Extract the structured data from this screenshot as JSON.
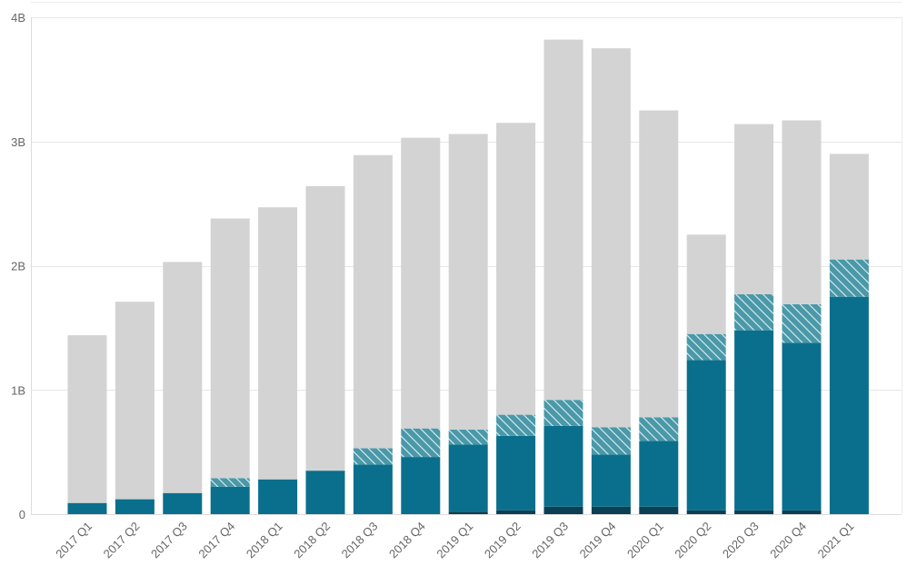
{
  "chart_data": {
    "type": "bar",
    "stacked": true,
    "title": "",
    "xlabel": "",
    "ylabel": "",
    "ylim": [
      0,
      4000000000
    ],
    "grid": true,
    "legend": "none",
    "ytick_values": [
      0,
      1000000000,
      2000000000,
      3000000000,
      4000000000
    ],
    "ytick_labels": [
      "0",
      "1B",
      "2B",
      "3B",
      "4B"
    ],
    "categories": [
      "2017 Q1",
      "2017 Q2",
      "2017 Q3",
      "2017 Q4",
      "2018 Q1",
      "2018 Q2",
      "2018 Q3",
      "2018 Q4",
      "2019 Q1",
      "2019 Q2",
      "2019 Q3",
      "2019 Q4",
      "2020 Q1",
      "2020 Q2",
      "2020 Q3",
      "2020 Q4",
      "2021 Q1"
    ],
    "series": [
      {
        "color": "#0b3f54",
        "style": "solid",
        "values": [
          0,
          0,
          0,
          0,
          0,
          0,
          0,
          0,
          20000000,
          30000000,
          60000000,
          60000000,
          60000000,
          30000000,
          30000000,
          30000000,
          0
        ]
      },
      {
        "color": "#0a6f8c",
        "style": "solid",
        "values": [
          90000000,
          120000000,
          170000000,
          220000000,
          280000000,
          350000000,
          400000000,
          460000000,
          540000000,
          600000000,
          650000000,
          420000000,
          530000000,
          1210000000,
          1450000000,
          1350000000,
          1750000000
        ]
      },
      {
        "color": "#4a98a8",
        "style": "hatched",
        "values": [
          0,
          0,
          0,
          70000000,
          0,
          0,
          130000000,
          230000000,
          120000000,
          170000000,
          210000000,
          220000000,
          190000000,
          210000000,
          290000000,
          310000000,
          300000000
        ]
      },
      {
        "color": "#d3d3d3",
        "style": "solid",
        "values": [
          1350000000,
          1590000000,
          1860000000,
          2090000000,
          2190000000,
          2290000000,
          2360000000,
          2340000000,
          2380000000,
          2350000000,
          2900000000,
          3050000000,
          2470000000,
          800000000,
          1370000000,
          1480000000,
          850000000
        ]
      }
    ]
  }
}
